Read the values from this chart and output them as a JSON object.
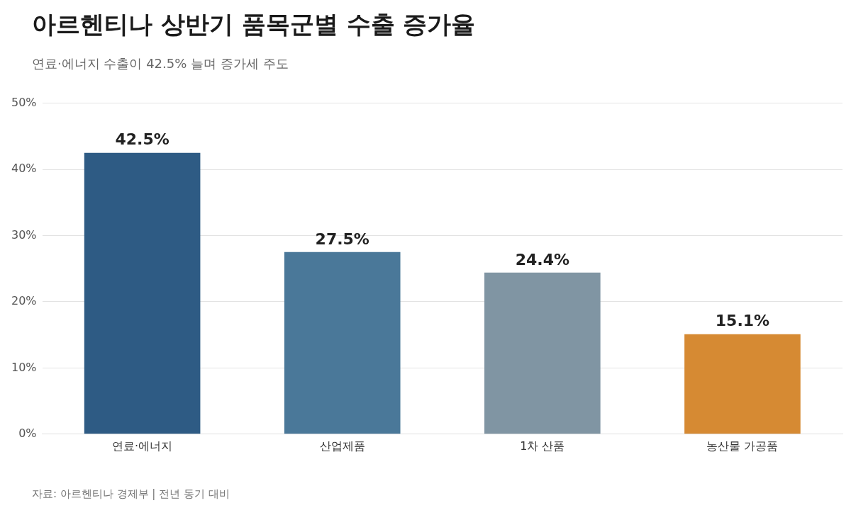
{
  "chart_data": {
    "type": "bar",
    "title": "아르헨티나 상반기 품목군별 수출 증가율",
    "subtitle": "연료·에너지 수출이 42.5% 늘며 증가세 주도",
    "categories": [
      "연료·에너지",
      "산업제품",
      "1차 산품",
      "농산물 가공품"
    ],
    "values": [
      42.5,
      27.5,
      24.4,
      15.1
    ],
    "colors": [
      "#2e5b84",
      "#4a7899",
      "#8095a3",
      "#d68a33"
    ],
    "value_labels": [
      "42.5%",
      "27.5%",
      "24.4%",
      "15.1%"
    ],
    "ylim": [
      0,
      50
    ],
    "yticks": [
      {
        "value": 0,
        "label": "0%"
      },
      {
        "value": 10,
        "label": "10%"
      },
      {
        "value": 20,
        "label": "20%"
      },
      {
        "value": 30,
        "label": "30%"
      },
      {
        "value": 40,
        "label": "40%"
      },
      {
        "value": 50,
        "label": "50%"
      }
    ],
    "grid": "y",
    "legend": false,
    "annotations": [
      "자료: 아르헨티나 경제부 | 전년 동기 대비"
    ]
  }
}
